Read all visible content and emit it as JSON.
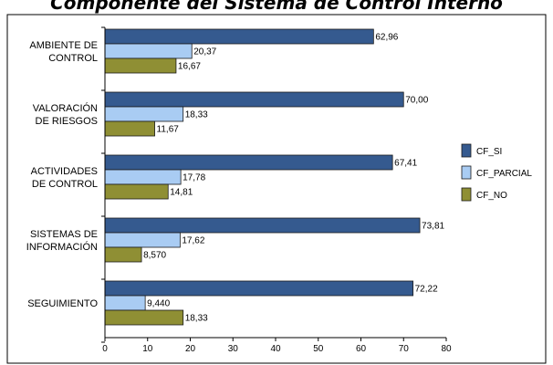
{
  "chart_data": {
    "type": "bar",
    "orientation": "horizontal",
    "title": "Componente del Sistema de Control Interno",
    "categories": [
      [
        "AMBIENTE DE",
        "CONTROL"
      ],
      [
        "VALORACIÓN",
        "DE RIESGOS"
      ],
      [
        "ACTIVIDADES",
        "DE CONTROL"
      ],
      [
        "SISTEMAS DE",
        "INFORMACIÓN"
      ],
      [
        "SEGUIMIENTO"
      ]
    ],
    "series": [
      {
        "name": "CF_SI",
        "color": "#355a8f",
        "values": [
          62.96,
          70.0,
          67.41,
          73.81,
          72.22
        ],
        "labels": [
          "62,96",
          "70,00",
          "67,41",
          "73,81",
          "72,22"
        ]
      },
      {
        "name": "CF_PARCIAL",
        "color": "#a9ccf3",
        "values": [
          20.37,
          18.33,
          17.78,
          17.62,
          9.44
        ],
        "labels": [
          "20,37",
          "18,33",
          "17,78",
          "17,62",
          "9,440"
        ]
      },
      {
        "name": "CF_NO",
        "color": "#8f8f34",
        "values": [
          16.67,
          11.67,
          14.81,
          8.57,
          18.33
        ],
        "labels": [
          "16,67",
          "11,67",
          "14,81",
          "8,570",
          "18,33"
        ]
      }
    ],
    "xlim": [
      0,
      80
    ],
    "xticks": [
      "0",
      "10",
      "20",
      "30",
      "40",
      "50",
      "60",
      "70",
      "80"
    ],
    "grid": false,
    "legend_position": "right"
  }
}
